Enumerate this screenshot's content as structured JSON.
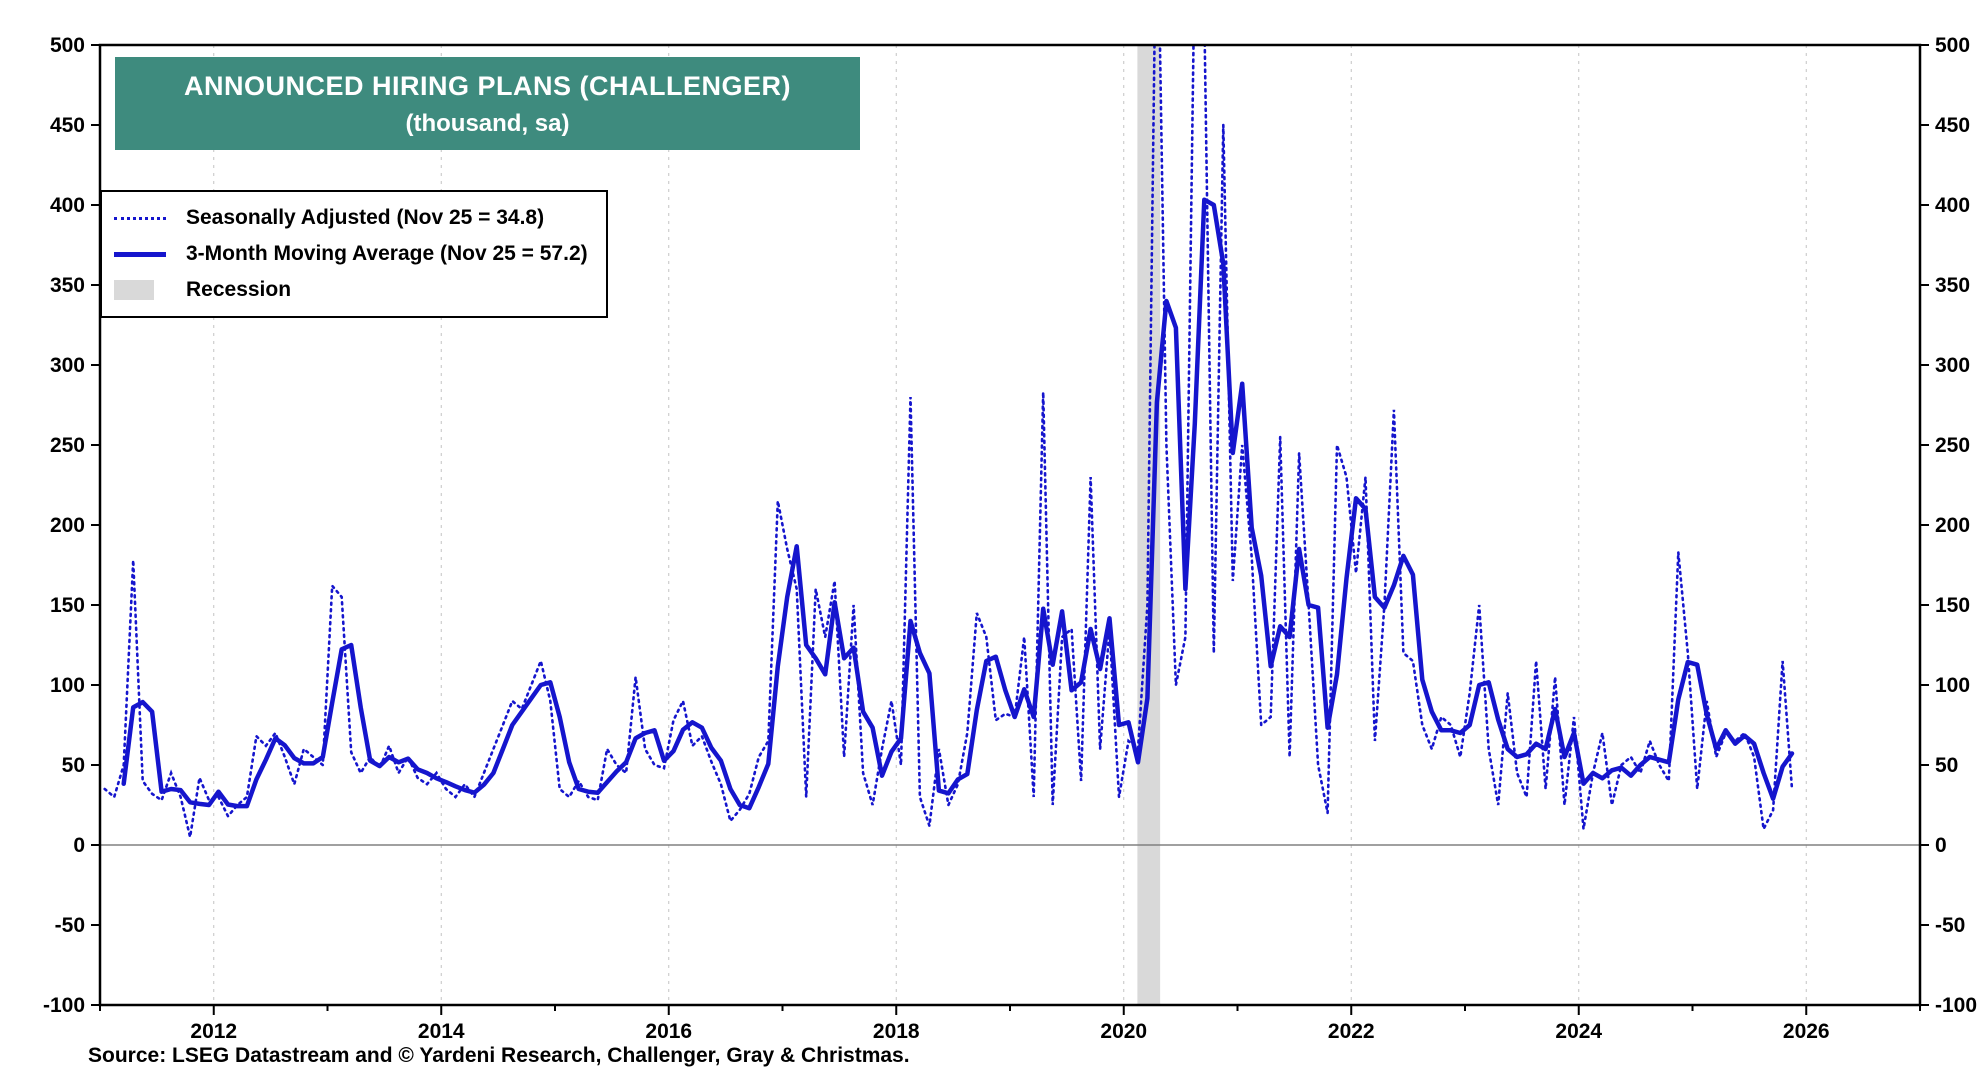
{
  "title": {
    "line1": "ANNOUNCED HIRING PLANS (CHALLENGER)",
    "line2": "(thousand, sa)"
  },
  "legend": {
    "items": [
      {
        "label": "Seasonally Adjusted (Nov 25 = 34.8)",
        "swatch": "dotted-line"
      },
      {
        "label": "3-Month Moving Average (Nov 25 = 57.2)",
        "swatch": "solid-line"
      },
      {
        "label": "Recession",
        "swatch": "gray-band"
      }
    ]
  },
  "source": "Source: LSEG Datastream and © Yardeni Research, Challenger, Gray & Christmas.",
  "colors": {
    "line": "#1515CD",
    "title_bg": "#3E8B7E",
    "recession": "#D9D9D9",
    "gridline": "#C4C4C4",
    "zero_line": "#808080"
  },
  "chart_data": {
    "type": "line",
    "title": "Announced Hiring Plans (Challenger), thousand, seasonally adjusted",
    "frequency": "monthly",
    "start": "2011-01",
    "end": "2025-11",
    "ylim": [
      -100,
      500
    ],
    "ytick_step": 50,
    "xlim": [
      2011,
      2027
    ],
    "xticks": [
      2012,
      2014,
      2016,
      2018,
      2020,
      2022,
      2024,
      2026
    ],
    "grid": "vertical-dashed-at-even-years",
    "legend_position": "top-left",
    "recession_bands": [
      [
        2020.12,
        2020.32
      ]
    ],
    "series": [
      {
        "name": "Seasonally Adjusted",
        "style": "dotted",
        "values": [
          35,
          30,
          50,
          178,
          40,
          32,
          28,
          45,
          30,
          5,
          42,
          28,
          30,
          18,
          25,
          30,
          68,
          62,
          70,
          55,
          38,
          60,
          55,
          50,
          162,
          155,
          58,
          45,
          55,
          48,
          62,
          45,
          55,
          42,
          38,
          45,
          35,
          30,
          38,
          30,
          45,
          60,
          75,
          90,
          85,
          100,
          115,
          90,
          35,
          30,
          40,
          30,
          28,
          60,
          50,
          45,
          105,
          60,
          50,
          48,
          78,
          90,
          62,
          68,
          52,
          38,
          15,
          22,
          32,
          55,
          65,
          215,
          185,
          160,
          30,
          160,
          130,
          165,
          55,
          150,
          45,
          25,
          60,
          90,
          50,
          280,
          30,
          12,
          60,
          25,
          38,
          70,
          145,
          130,
          78,
          82,
          80,
          130,
          30,
          283,
          25,
          130,
          135,
          40,
          230,
          60,
          135,
          30,
          65,
          60,
          150,
          620,
          250,
          100,
          130,
          560,
          520,
          120,
          450,
          165,
          250,
          180,
          75,
          80,
          255,
          55,
          245,
          150,
          50,
          20,
          250,
          230,
          170,
          230,
          65,
          150,
          272,
          120,
          115,
          75,
          60,
          80,
          75,
          55,
          95,
          150,
          60,
          25,
          95,
          45,
          30,
          115,
          35,
          105,
          25,
          80,
          10,
          45,
          70,
          25,
          50,
          55,
          45,
          65,
          50,
          40,
          183,
          120,
          35,
          90,
          55,
          70,
          65,
          70,
          55,
          10,
          21.8,
          115,
          34.8
        ]
      },
      {
        "name": "3-Month Moving Average",
        "style": "solid",
        "derived": "3-month moving average of Seasonally Adjusted series",
        "ma_window": 3
      }
    ],
    "last_point": {
      "label": "Nov 25",
      "seasonally_adjusted": 34.8,
      "moving_average_3m": 57.2
    }
  }
}
